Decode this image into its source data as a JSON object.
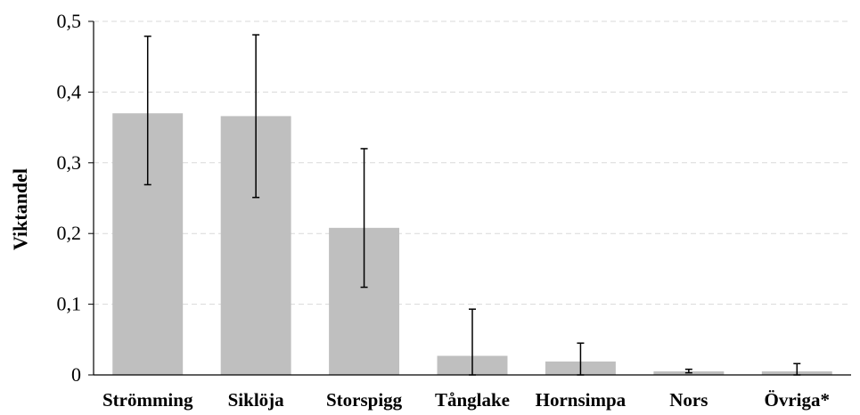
{
  "chart_data": {
    "type": "bar",
    "categories": [
      "Strömming",
      "Siklöja",
      "Storspigg",
      "Tånglake",
      "Hornsimpa",
      "Nors",
      "Övriga*"
    ],
    "values": [
      0.37,
      0.366,
      0.208,
      0.027,
      0.019,
      0.005,
      0.005
    ],
    "error_low": [
      0.269,
      0.251,
      0.124,
      0.0,
      0.0,
      0.003,
      0.0
    ],
    "error_high": [
      0.479,
      0.481,
      0.32,
      0.093,
      0.045,
      0.008,
      0.016
    ],
    "title": "",
    "xlabel": "",
    "ylabel": "Viktandel",
    "ylim": [
      0,
      0.5
    ],
    "yticks": [
      0,
      0.1,
      0.2,
      0.3,
      0.4,
      0.5
    ],
    "ytick_labels": [
      "0",
      "0,1",
      "0,2",
      "0,3",
      "0,4",
      "0,5"
    ],
    "grid": "horizontal dashed",
    "legend": "none",
    "bar_color": "#bfbfbf",
    "error_bar_color": "#000000",
    "grid_color": "#d9d9d9"
  }
}
